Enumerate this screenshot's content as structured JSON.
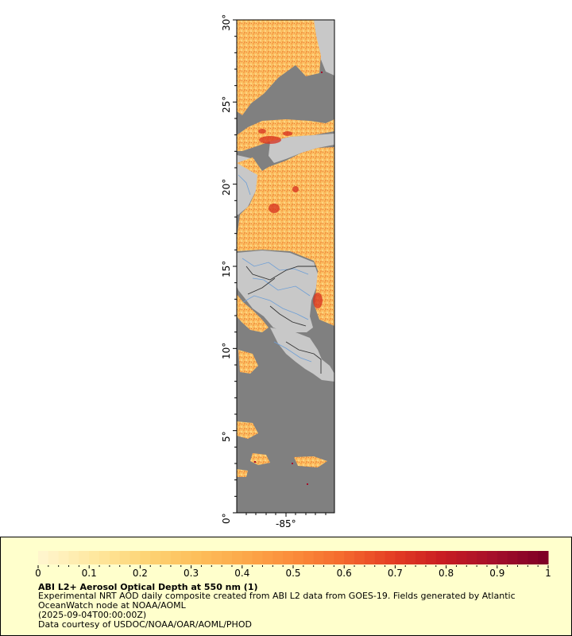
{
  "map": {
    "y_ticks": [
      "0°",
      "5°",
      "10°",
      "15°",
      "20°",
      "25°",
      "30°"
    ],
    "x_ticks": [
      "-85°"
    ],
    "colors": {
      "ocean_nodata": "#808080",
      "land": "#c8c8c8",
      "rivers": "#6e9fd6",
      "borders": "#333333",
      "aod_low": "#ffe9a8",
      "aod_mid": "#fdae61",
      "aod_high": "#d7301f"
    }
  },
  "colorbar": {
    "tick_labels": [
      "0",
      "0.1",
      "0.2",
      "0.3",
      "0.4",
      "0.5",
      "0.6",
      "0.7",
      "0.8",
      "0.9",
      "1"
    ],
    "range": [
      0,
      1
    ],
    "colors": [
      "#fff5cc",
      "#fee8a0",
      "#fdd577",
      "#fdc05c",
      "#fca94a",
      "#fb8c3a",
      "#f46a2d",
      "#e43d23",
      "#c81c22",
      "#a50f2a",
      "#800026"
    ]
  },
  "legend": {
    "title": "ABI L2+ Aerosol Optical Depth at 550 nm (1)",
    "description": "Experimental NRT AOD daily composite created from ABI L2 data from GOES-19. Fields generated by Atlantic OceanWatch node at NOAA/AOML",
    "date": "(2025-09-04T00:00:00Z)",
    "credit": "Data courtesy of USDOC/NOAA/OAR/AOML/PHOD"
  }
}
